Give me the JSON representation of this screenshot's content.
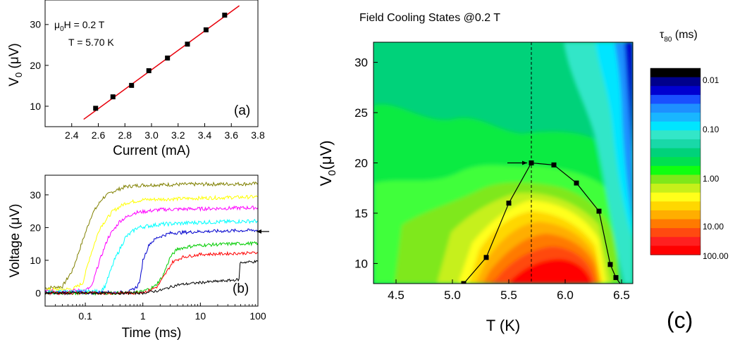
{
  "chart_data": [
    {
      "type": "scatter",
      "panel_label": "(a)",
      "xlabel": "Current (mA)",
      "ylabel_main": "V",
      "ylabel_sub": "0",
      "ylabel_unit": " (μV)",
      "annotation_line1_main": "μ",
      "annotation_line1_sub": "0",
      "annotation_line1_rest": "H = 0.2 T",
      "annotation_line2": "T = 5.70 K",
      "xlim": [
        2.2,
        3.8
      ],
      "ylim": [
        5,
        36
      ],
      "xticks": [
        "2.4",
        "2.6",
        "2.8",
        "3.0",
        "3.2",
        "3.4",
        "3.6",
        "3.8"
      ],
      "yticks": [
        "10",
        "20",
        "30"
      ],
      "x": [
        2.58,
        2.71,
        2.85,
        2.98,
        3.12,
        3.27,
        3.41,
        3.55
      ],
      "y": [
        9.5,
        12.3,
        15.1,
        18.7,
        21.8,
        25.2,
        28.7,
        32.3
      ],
      "fit_line": {
        "x": [
          2.49,
          3.66
        ],
        "y": [
          6.8,
          34.6
        ],
        "color": "#e8000b"
      },
      "marker_color": "#000000"
    },
    {
      "type": "line",
      "panel_label": "(b)",
      "xlabel": "Time (ms)",
      "ylabel": "Voltage (μV)",
      "xscale": "log",
      "xlim": [
        0.02,
        100
      ],
      "ylim": [
        -4,
        36
      ],
      "xticks": [
        "0.1",
        "1",
        "10",
        "100"
      ],
      "yticks": [
        "0",
        "10",
        "20",
        "30"
      ],
      "series": [
        {
          "color": "#808000",
          "noise": 0.55,
          "values": [
            [
              0.02,
              1.5
            ],
            [
              0.04,
              2
            ],
            [
              0.06,
              7
            ],
            [
              0.09,
              16
            ],
            [
              0.13,
              24
            ],
            [
              0.2,
              29
            ],
            [
              0.3,
              31
            ],
            [
              0.5,
              32.5
            ],
            [
              1,
              33
            ],
            [
              5,
              33.2
            ],
            [
              100,
              33.4
            ]
          ]
        },
        {
          "color": "#ffff00",
          "noise": 0.55,
          "values": [
            [
              0.02,
              1
            ],
            [
              0.06,
              1.2
            ],
            [
              0.09,
              3
            ],
            [
              0.12,
              11
            ],
            [
              0.18,
              20
            ],
            [
              0.3,
              25
            ],
            [
              0.5,
              27.5
            ],
            [
              1,
              28.5
            ],
            [
              10,
              29
            ],
            [
              100,
              29.4
            ]
          ]
        },
        {
          "color": "#ff00ff",
          "noise": 0.55,
          "values": [
            [
              0.02,
              0.5
            ],
            [
              0.1,
              0.8
            ],
            [
              0.13,
              2
            ],
            [
              0.17,
              9
            ],
            [
              0.25,
              17
            ],
            [
              0.4,
              22
            ],
            [
              0.7,
              24.5
            ],
            [
              2,
              25.5
            ],
            [
              100,
              26.1
            ]
          ]
        },
        {
          "color": "#00ffff",
          "noise": 0.6,
          "values": [
            [
              0.02,
              0.3
            ],
            [
              0.18,
              0.5
            ],
            [
              0.22,
              2
            ],
            [
              0.32,
              10
            ],
            [
              0.5,
              17
            ],
            [
              0.8,
              20
            ],
            [
              2,
              21
            ],
            [
              10,
              21.6
            ],
            [
              100,
              22
            ]
          ]
        },
        {
          "color": "#0000cd",
          "noise": 0.5,
          "values": [
            [
              0.02,
              0
            ],
            [
              0.45,
              0.2
            ],
            [
              0.6,
              0.5
            ],
            [
              0.8,
              2
            ],
            [
              0.9,
              4
            ],
            [
              1.0,
              10
            ],
            [
              1.3,
              15
            ],
            [
              1.8,
              17
            ],
            [
              3,
              18.3
            ],
            [
              10,
              18.8
            ],
            [
              100,
              19.2
            ]
          ]
        },
        {
          "color": "#00cc00",
          "noise": 0.5,
          "values": [
            [
              0.02,
              0
            ],
            [
              0.6,
              0
            ],
            [
              1,
              0.5
            ],
            [
              1.6,
              2
            ],
            [
              2.2,
              5
            ],
            [
              3,
              11
            ],
            [
              4,
              13.5
            ],
            [
              8,
              14.5
            ],
            [
              30,
              15
            ],
            [
              100,
              15.2
            ]
          ]
        },
        {
          "color": "#ff0000",
          "noise": 0.45,
          "values": [
            [
              0.02,
              0
            ],
            [
              0.7,
              0
            ],
            [
              1.2,
              0.5
            ],
            [
              1.8,
              2
            ],
            [
              2.5,
              6
            ],
            [
              3.3,
              9.5
            ],
            [
              5,
              11
            ],
            [
              10,
              11.8
            ],
            [
              100,
              12.3
            ]
          ]
        },
        {
          "color": "#000000",
          "noise": 0.4,
          "values": [
            [
              0.02,
              0
            ],
            [
              1,
              0
            ],
            [
              2,
              0.8
            ],
            [
              4,
              2.5
            ],
            [
              10,
              3.2
            ],
            [
              30,
              3.8
            ],
            [
              47,
              4.1
            ],
            [
              49,
              9.3
            ],
            [
              70,
              9.5
            ],
            [
              100,
              9.6
            ]
          ]
        }
      ],
      "arrow_y": 18.8,
      "arrow_color": "#000000"
    },
    {
      "type": "heatmap",
      "panel_label": "(c)",
      "title": "Field Cooling States @0.2 T",
      "xlabel": "T (K)",
      "ylabel_main": "V",
      "ylabel_sub": "0",
      "ylabel_unit": "(μV)",
      "xlim": [
        4.3,
        6.6
      ],
      "ylim": [
        8,
        32
      ],
      "xticks": [
        "4.5",
        "5.0",
        "5.5",
        "6.0",
        "6.5"
      ],
      "yticks": [
        "10",
        "15",
        "20",
        "25",
        "30"
      ],
      "colorbar": {
        "title_main": "τ",
        "title_sub": "80",
        "title_unit": " (ms)",
        "labels": [
          "0.01",
          "0.10",
          "1.00",
          "10.00",
          "100.00"
        ],
        "colors": [
          "#000000",
          "#00008b",
          "#0000d0",
          "#1a50ff",
          "#1e90ff",
          "#19b6ff",
          "#00e5ff",
          "#33e6c8",
          "#19d8a8",
          "#00d27a",
          "#00e050",
          "#10ff10",
          "#7fe81a",
          "#c6f01a",
          "#ffff1a",
          "#ffd700",
          "#ffae00",
          "#ff7a00",
          "#ff4a10",
          "#ff2020",
          "#ff0000"
        ]
      },
      "dashed_x": 5.7,
      "series": [
        {
          "x": [
            5.1,
            5.3,
            5.5,
            5.7,
            5.9,
            6.1,
            6.3,
            6.4,
            6.45,
            6.5
          ],
          "y": [
            8,
            10.6,
            16,
            20,
            19.8,
            18,
            15.2,
            9.9,
            8.6,
            7.8
          ]
        }
      ],
      "arrow_point": [
        5.7,
        20
      ]
    }
  ]
}
